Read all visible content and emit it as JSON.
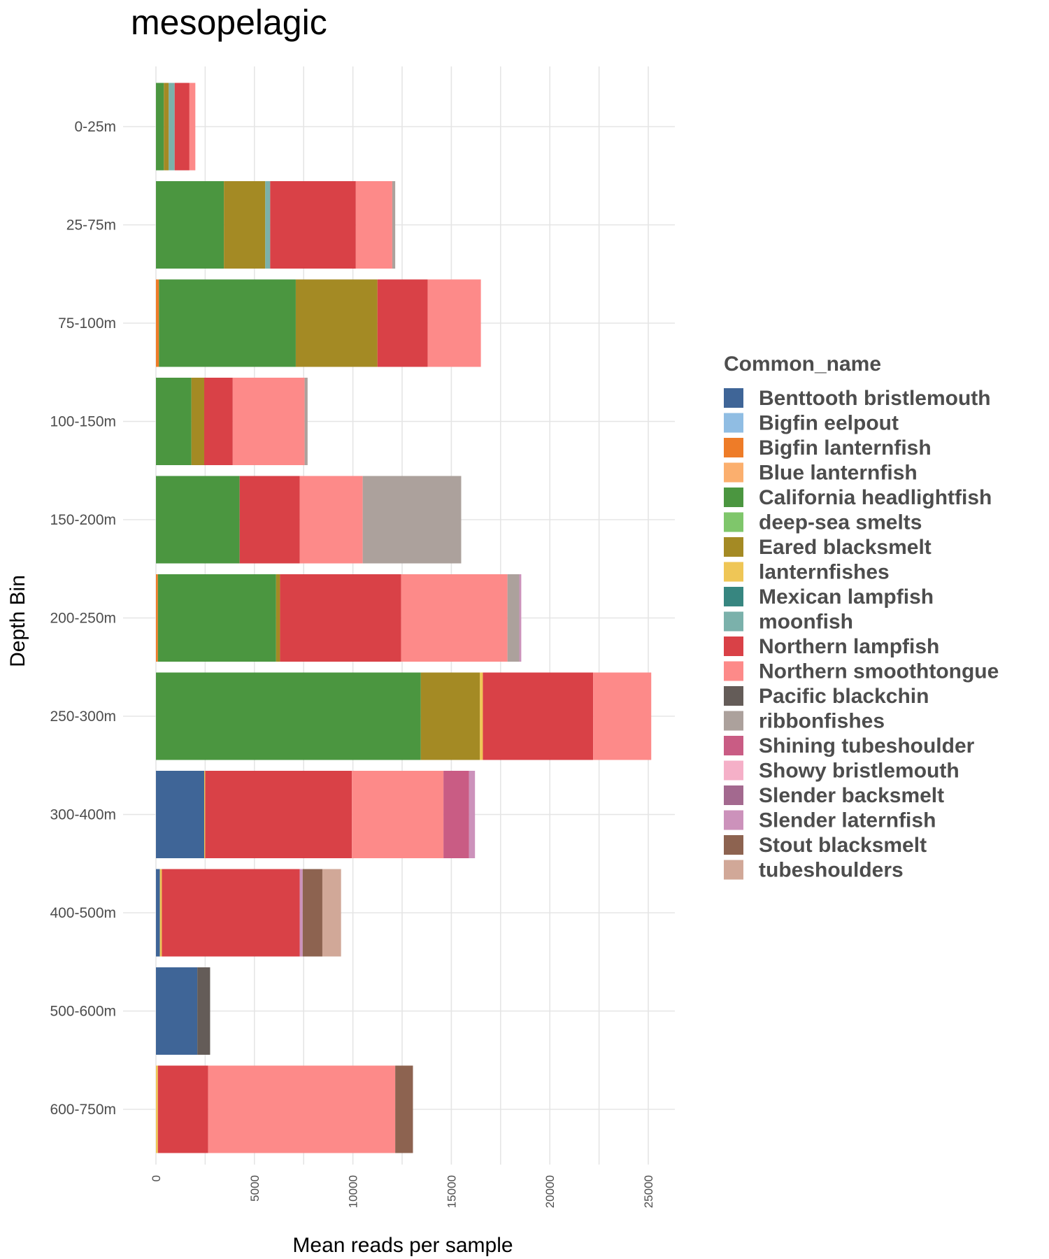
{
  "chart_data": {
    "type": "bar",
    "orientation": "horizontal",
    "stacked": true,
    "title": "mesopelagic",
    "xlabel": "Mean reads per sample",
    "ylabel": "Depth Bin",
    "xlim": [
      0,
      25000
    ],
    "xticks": [
      0,
      5000,
      10000,
      15000,
      20000,
      25000
    ],
    "grid": true,
    "legend_title": "Common_name",
    "legend_position": "right",
    "categories": [
      "0-25m",
      "25-75m",
      "75-100m",
      "100-150m",
      "150-200m",
      "200-250m",
      "250-300m",
      "300-400m",
      "400-500m",
      "500-600m",
      "600-750m"
    ],
    "series": [
      {
        "name": "Benttooth bristlemouth",
        "color": "#3f6597",
        "values": [
          0,
          0,
          0,
          0,
          0,
          0,
          0,
          2450,
          200,
          2100,
          0
        ]
      },
      {
        "name": "Bigfin eelpout",
        "color": "#90bde3",
        "values": [
          0,
          0,
          0,
          0,
          0,
          0,
          0,
          0,
          0,
          0,
          0
        ]
      },
      {
        "name": "Bigfin lanternfish",
        "color": "#ee7c28",
        "values": [
          0,
          0,
          150,
          0,
          0,
          100,
          0,
          0,
          0,
          0,
          0
        ]
      },
      {
        "name": "Blue lanternfish",
        "color": "#fbaf6e",
        "values": [
          0,
          0,
          0,
          0,
          0,
          0,
          0,
          0,
          0,
          0,
          0
        ]
      },
      {
        "name": "California headlightfish",
        "color": "#4b9640",
        "values": [
          400,
          3450,
          6950,
          1800,
          4250,
          6000,
          13450,
          0,
          0,
          0,
          0
        ]
      },
      {
        "name": "deep-sea smelts",
        "color": "#7fc66b",
        "values": [
          0,
          0,
          0,
          0,
          0,
          0,
          0,
          0,
          0,
          0,
          0
        ]
      },
      {
        "name": "Eared blacksmelt",
        "color": "#a48a24",
        "values": [
          250,
          2100,
          4150,
          650,
          0,
          200,
          3000,
          0,
          0,
          0,
          0
        ]
      },
      {
        "name": "lanternfishes",
        "color": "#efc656",
        "values": [
          0,
          0,
          0,
          0,
          0,
          0,
          150,
          50,
          100,
          0,
          100
        ]
      },
      {
        "name": "Mexican lampfish",
        "color": "#378680",
        "values": [
          0,
          0,
          0,
          0,
          0,
          0,
          0,
          0,
          0,
          0,
          0
        ]
      },
      {
        "name": "moonfish",
        "color": "#7bb1ab",
        "values": [
          300,
          250,
          0,
          0,
          0,
          0,
          0,
          0,
          0,
          0,
          0
        ]
      },
      {
        "name": "Northern lampfish",
        "color": "#d94147",
        "values": [
          750,
          4350,
          2550,
          1450,
          3050,
          6150,
          5600,
          7450,
          7000,
          0,
          2550
        ]
      },
      {
        "name": "Northern smoothtongue",
        "color": "#fd8a89",
        "values": [
          300,
          1850,
          2700,
          3650,
          3200,
          5400,
          2950,
          4650,
          0,
          0,
          9500
        ]
      },
      {
        "name": "Pacific blackchin",
        "color": "#645c58",
        "values": [
          0,
          0,
          0,
          0,
          0,
          0,
          0,
          0,
          0,
          650,
          0
        ]
      },
      {
        "name": "ribbonfishes",
        "color": "#aca19c",
        "values": [
          0,
          150,
          0,
          150,
          5000,
          600,
          0,
          0,
          0,
          0,
          0
        ]
      },
      {
        "name": "Shining tubeshoulder",
        "color": "#c95c84",
        "values": [
          0,
          0,
          0,
          0,
          0,
          0,
          0,
          1300,
          0,
          0,
          0
        ]
      },
      {
        "name": "Showy bristlemouth",
        "color": "#f5b0c8",
        "values": [
          0,
          0,
          0,
          0,
          0,
          0,
          0,
          0,
          0,
          0,
          0
        ]
      },
      {
        "name": "Slender backsmelt",
        "color": "#a3698f",
        "values": [
          0,
          0,
          0,
          0,
          0,
          0,
          0,
          0,
          0,
          0,
          0
        ]
      },
      {
        "name": "Slender laternfish",
        "color": "#cc92bb",
        "values": [
          0,
          0,
          0,
          0,
          0,
          100,
          0,
          300,
          150,
          0,
          0
        ]
      },
      {
        "name": "Stout blacksmelt",
        "color": "#8d6350",
        "values": [
          0,
          0,
          0,
          0,
          0,
          0,
          0,
          0,
          1000,
          0,
          900
        ]
      },
      {
        "name": "tubeshoulders",
        "color": "#d1a898",
        "values": [
          0,
          0,
          0,
          0,
          0,
          0,
          0,
          0,
          950,
          0,
          0
        ]
      }
    ]
  }
}
